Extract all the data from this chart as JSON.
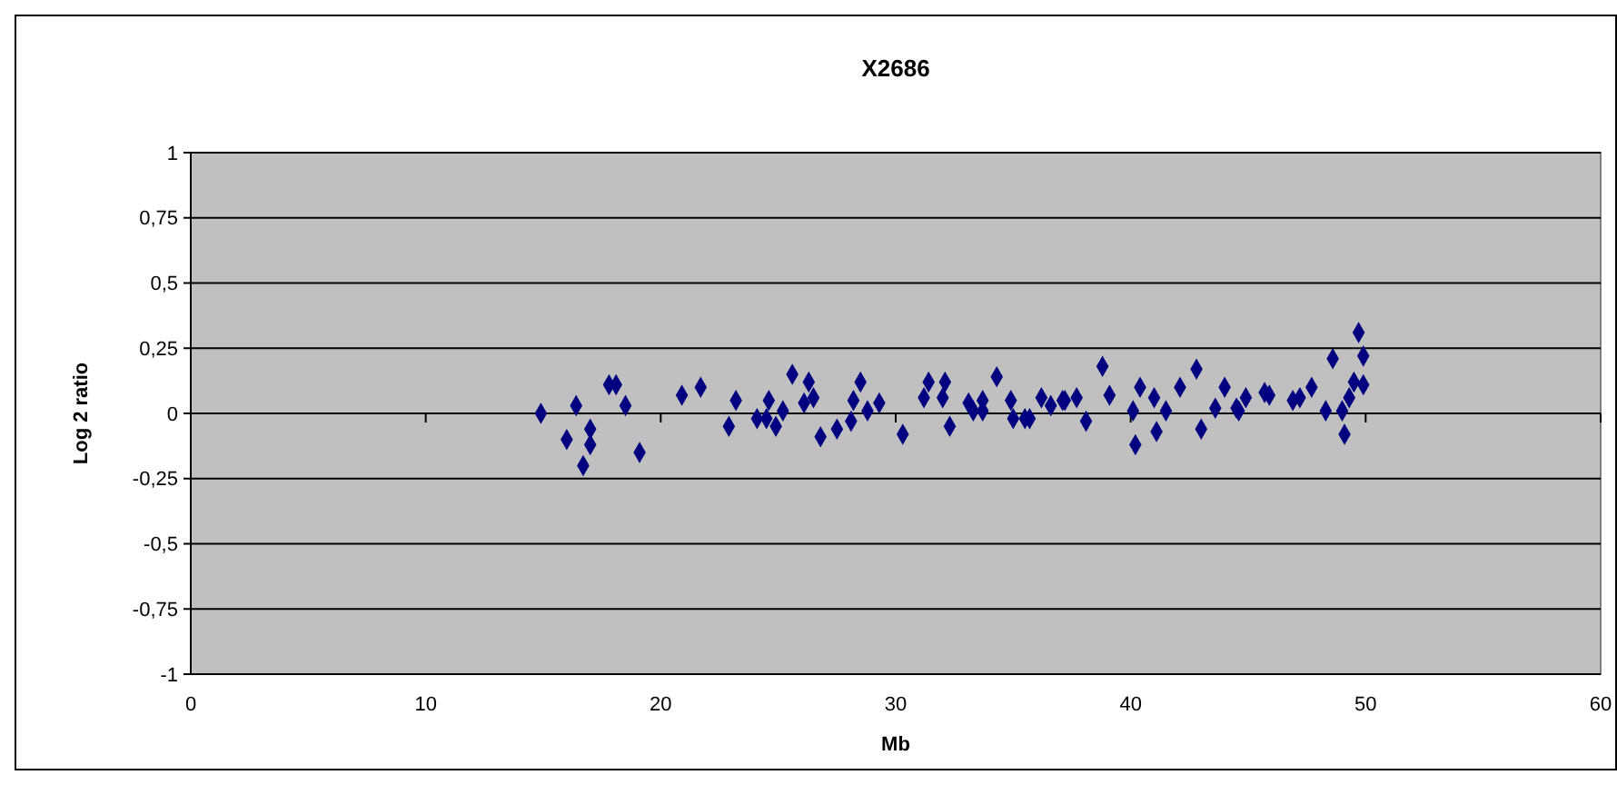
{
  "chart_data": {
    "type": "scatter",
    "title": "X2686",
    "xlabel": "Mb",
    "ylabel": "Log 2 ratio",
    "marker": "diamond",
    "grid": "y",
    "xlim": [
      0,
      60
    ],
    "xticks": [
      0,
      10,
      20,
      30,
      40,
      50,
      60
    ],
    "ylim": [
      -1,
      1
    ],
    "yticks": [
      {
        "value": -1,
        "label": "-1"
      },
      {
        "value": -0.75,
        "label": "-0,75"
      },
      {
        "value": -0.5,
        "label": "-0,5"
      },
      {
        "value": -0.25,
        "label": "-0,25"
      },
      {
        "value": 0,
        "label": "0"
      },
      {
        "value": 0.25,
        "label": "0,25"
      },
      {
        "value": 0.5,
        "label": "0,5"
      },
      {
        "value": 0.75,
        "label": "0,75"
      },
      {
        "value": 1,
        "label": "1"
      }
    ],
    "series": [
      {
        "color": "#000080",
        "x": [
          14.9,
          16.0,
          16.4,
          16.7,
          17.0,
          17.0,
          17.8,
          18.1,
          18.5,
          19.1,
          20.9,
          21.7,
          22.9,
          23.2,
          24.1,
          24.5,
          24.6,
          24.9,
          25.2,
          25.6,
          26.1,
          26.3,
          26.5,
          26.8,
          27.5,
          28.1,
          28.2,
          28.5,
          28.8,
          29.3,
          30.3,
          31.2,
          31.4,
          32.0,
          32.1,
          32.3,
          33.1,
          33.3,
          33.7,
          33.7,
          34.3,
          34.9,
          35.0,
          35.5,
          35.7,
          36.2,
          36.6,
          37.1,
          37.2,
          37.7,
          38.1,
          38.8,
          39.1,
          40.1,
          40.2,
          40.4,
          41.0,
          41.1,
          41.5,
          42.1,
          42.8,
          43.0,
          43.6,
          44.0,
          44.5,
          44.6,
          44.9,
          45.7,
          45.9,
          46.9,
          47.2,
          47.7,
          48.3,
          48.6,
          49.0,
          49.1,
          49.3,
          49.5,
          49.7,
          49.9,
          49.9
        ],
        "values": [
          0,
          -0.1,
          0.03,
          -0.2,
          -0.12,
          -0.06,
          0.11,
          0.11,
          0.03,
          -0.15,
          0.07,
          0.1,
          -0.05,
          0.05,
          -0.02,
          -0.02,
          0.05,
          -0.05,
          0.01,
          0.15,
          0.04,
          0.12,
          0.06,
          -0.09,
          -0.06,
          -0.03,
          0.05,
          0.12,
          0.01,
          0.04,
          -0.08,
          0.06,
          0.12,
          0.06,
          0.12,
          -0.05,
          0.04,
          0.01,
          0.05,
          0.01,
          0.14,
          0.05,
          -0.02,
          -0.02,
          -0.02,
          0.06,
          0.03,
          0.05,
          0.05,
          0.06,
          -0.03,
          0.18,
          0.07,
          0.01,
          -0.12,
          0.1,
          0.06,
          -0.07,
          0.01,
          0.1,
          0.17,
          -0.06,
          0.02,
          0.1,
          0.02,
          0.01,
          0.06,
          0.08,
          0.07,
          0.05,
          0.06,
          0.1,
          0.01,
          0.21,
          0.01,
          -0.08,
          0.06,
          0.12,
          0.31,
          0.22,
          0.11
        ]
      }
    ]
  }
}
